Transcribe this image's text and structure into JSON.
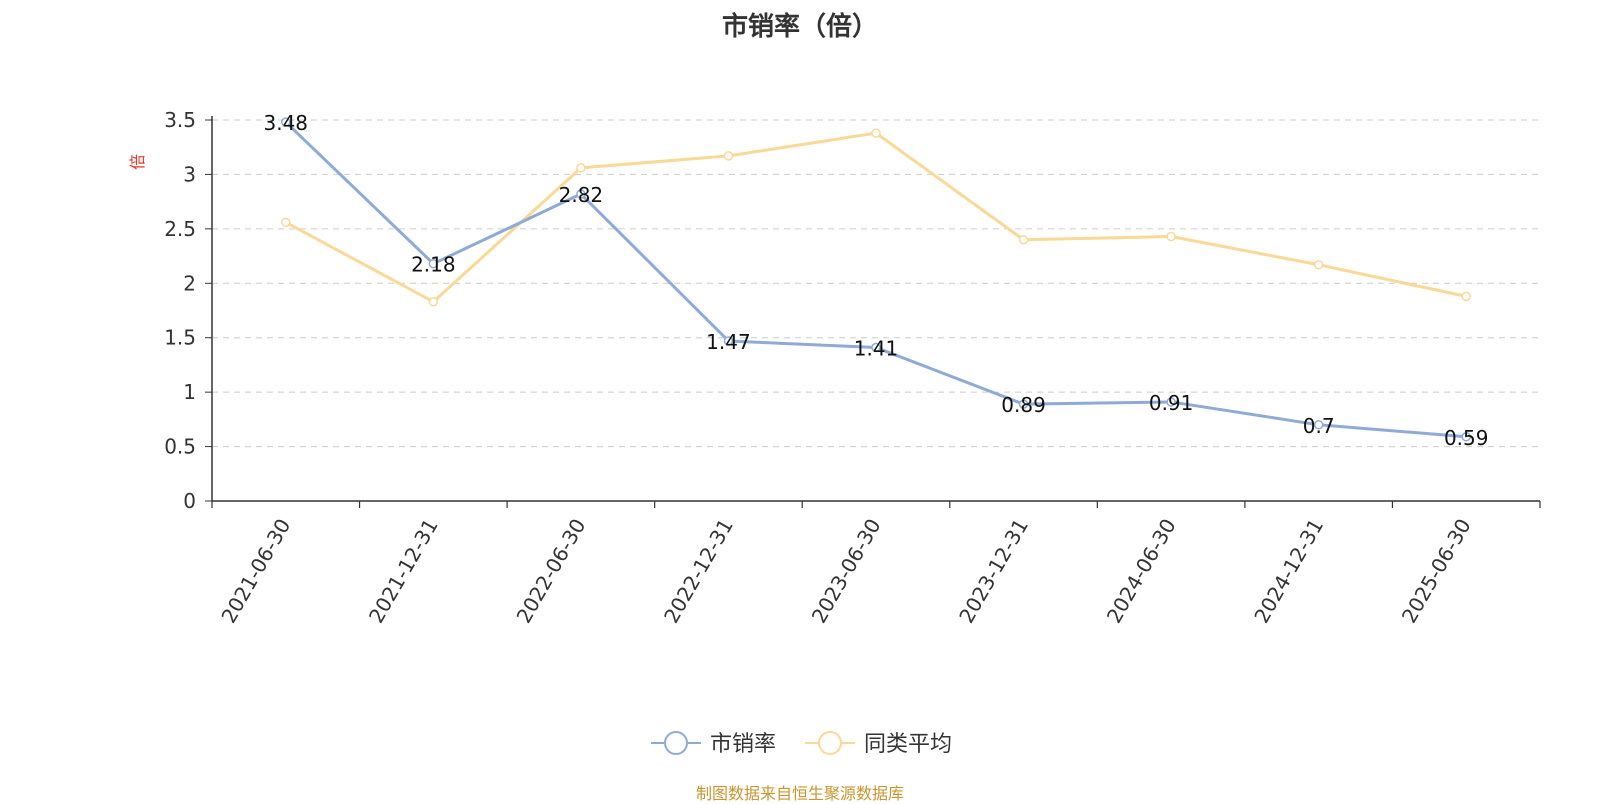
{
  "colors": {
    "series_main": "#8dabd6",
    "series_avg": "#fad895",
    "axis": "#333333",
    "grid": "#cccccc",
    "ylabel": "#e8352b",
    "source": "#c8962f"
  },
  "chart_data": {
    "type": "line",
    "title": "市销率（倍）",
    "ylabel": "倍",
    "xlabel": "",
    "x": [
      "2021-06-30",
      "2021-12-31",
      "2022-06-30",
      "2022-12-31",
      "2023-06-30",
      "2023-12-31",
      "2024-06-30",
      "2024-12-31",
      "2025-06-30"
    ],
    "yticks": [
      "0",
      "0.5",
      "1",
      "1.5",
      "2",
      "2.5",
      "3",
      "3.5"
    ],
    "ylim": [
      0,
      3.5
    ],
    "grid": true,
    "legend_position": "bottom-center",
    "series": [
      {
        "name": "市销率",
        "values": [
          3.48,
          2.18,
          2.82,
          1.47,
          1.41,
          0.89,
          0.91,
          0.7,
          0.59
        ],
        "labels": [
          "3.48",
          "2.18",
          "2.82",
          "1.47",
          "1.41",
          "0.89",
          "0.91",
          "0.7",
          "0.59"
        ]
      },
      {
        "name": "同类平均",
        "values": [
          2.56,
          1.83,
          3.06,
          3.17,
          3.38,
          2.4,
          2.43,
          2.17,
          1.88
        ]
      }
    ],
    "source": "制图数据来自恒生聚源数据库"
  }
}
